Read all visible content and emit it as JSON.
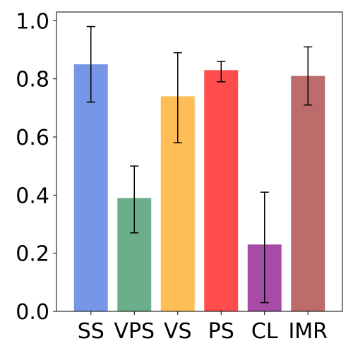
{
  "chart_data": {
    "type": "bar",
    "categories": [
      "SS",
      "VPS",
      "VS",
      "PS",
      "CL",
      "IMR"
    ],
    "series": [
      {
        "values": [
          0.85,
          0.39,
          0.74,
          0.83,
          0.23,
          0.81
        ],
        "error_low": [
          0.72,
          0.27,
          0.58,
          0.79,
          0.03,
          0.71
        ],
        "error_high": [
          0.98,
          0.5,
          0.89,
          0.86,
          0.41,
          0.91
        ],
        "colors": [
          "#7896E8",
          "#6BAE8A",
          "#FFBE55",
          "#FF4C4C",
          "#A64CA6",
          "#BD6B6B"
        ]
      }
    ],
    "ylim": [
      0,
      1.03
    ],
    "yticks": [
      0.0,
      0.2,
      0.4,
      0.6,
      0.8,
      1.0
    ],
    "ytick_labels": [
      "0.0",
      "0.2",
      "0.4",
      "0.6",
      "0.8",
      "1.0"
    ],
    "grid": false,
    "legend": "none"
  }
}
